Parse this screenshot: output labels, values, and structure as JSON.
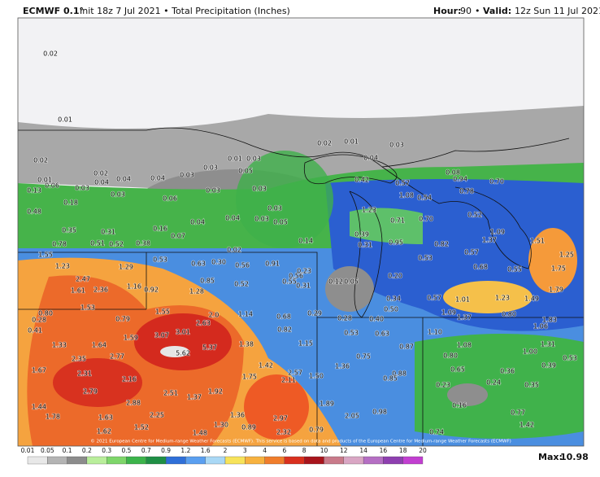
{
  "header": {
    "model": "ECMWF 0.1°",
    "subtitle": "Init 18z 7 Jul 2021 • Total Precipitation (Inches)",
    "hour_label": "Hour:",
    "hour": "90",
    "separator": "•",
    "valid_label": "Valid:",
    "valid": "12z Sun 11 Jul 2021"
  },
  "map": {
    "labels": [
      "0.02",
      "0.01",
      "0.02",
      "0.01",
      "0.06",
      "0.02",
      "0.03",
      "0.04",
      "0.03",
      "0.04",
      "0.04",
      "0.03",
      "0.03",
      "0.01",
      "0.03",
      "0.05",
      "0.02",
      "0.01",
      "0.03",
      "0.04",
      "0.13",
      "0.18",
      "0.06",
      "0.03",
      "0.03",
      "0.04",
      "0.04",
      "0.03",
      "0.05",
      "0.03",
      "0.48",
      "0.35",
      "0.31",
      "0.16",
      "0.78",
      "0.51",
      "0.52",
      "0.38",
      "0.07",
      "0.02",
      "0.14",
      "0.42",
      "0.57",
      "0.08",
      "0.94",
      "0.70",
      "1.08",
      "0.54",
      "0.78",
      "1.23",
      "0.71",
      "0.70",
      "0.52",
      "0.39",
      "0.31",
      "0.95",
      "0.82",
      "1.37",
      "1.09",
      "1.51",
      "1.25",
      "1.75",
      "0.53",
      "0.57",
      "0.68",
      "0.55",
      "1.55",
      "1.23",
      "1.29",
      "0.53",
      "0.63",
      "0.30",
      "0.56",
      "0.91",
      "0.56",
      "0.23",
      "0.55",
      "0.31",
      "0.12",
      "0.05",
      "0.20",
      "2.47",
      "1.61",
      "2.36",
      "1.16",
      "0.92",
      "0.85",
      "0.52",
      "1.28",
      "0.34",
      "0.57",
      "1.01",
      "1.23",
      "1.49",
      "1.79",
      "1.53",
      "1.55",
      "1.14",
      "0.68",
      "0.29",
      "0.28",
      "0.40",
      "0.50",
      "1.09",
      "1.37",
      "0.80",
      "1.83",
      "0.80",
      "0.28",
      "0.41",
      "0.79",
      "2.0",
      "2.63",
      "3.01",
      "3.07",
      "0.82",
      "0.53",
      "0.63",
      "1.10",
      "1.06",
      "1.33",
      "1.64",
      "1.59",
      "5.37",
      "5.62",
      "1.38",
      "1.15",
      "0.87",
      "1.08",
      "1.31",
      "1.00",
      "2.35",
      "2.77",
      "0.75",
      "0.80",
      "1.67",
      "2.31",
      "1.42",
      "1.36",
      "0.88",
      "0.65",
      "0.36",
      "0.39",
      "2.16",
      "1.75",
      "2.57",
      "2.11",
      "1.50",
      "0.85",
      "2.79",
      "2.51",
      "1.37",
      "1.92",
      "0.23",
      "0.24",
      "0.35",
      "1.44",
      "2.88",
      "1.89",
      "2.05",
      "0.16",
      "1.78",
      "1.63",
      "2.25",
      "1.36",
      "2.97",
      "0.98",
      "0.77",
      "1.62",
      "1.52",
      "1.48",
      "1.30",
      "0.89",
      "2.32",
      "0.79",
      "0.74",
      "1.42",
      "0.53"
    ]
  },
  "footer": {
    "copyright": "© 2021 European Centre for Medium-range Weather Forecasts (ECMWF). This service is based on data and products of the European Centre for Medium-range Weather Forecasts (ECMWF)",
    "max_label": "Max:",
    "max": "10.98"
  },
  "colorbar": {
    "ticks": [
      0.01,
      0.05,
      0.1,
      0.2,
      0.3,
      0.5,
      0.7,
      0.9,
      1.2,
      1.6,
      2,
      3,
      4,
      6,
      8,
      10,
      12,
      14,
      16,
      18,
      20
    ]
  }
}
